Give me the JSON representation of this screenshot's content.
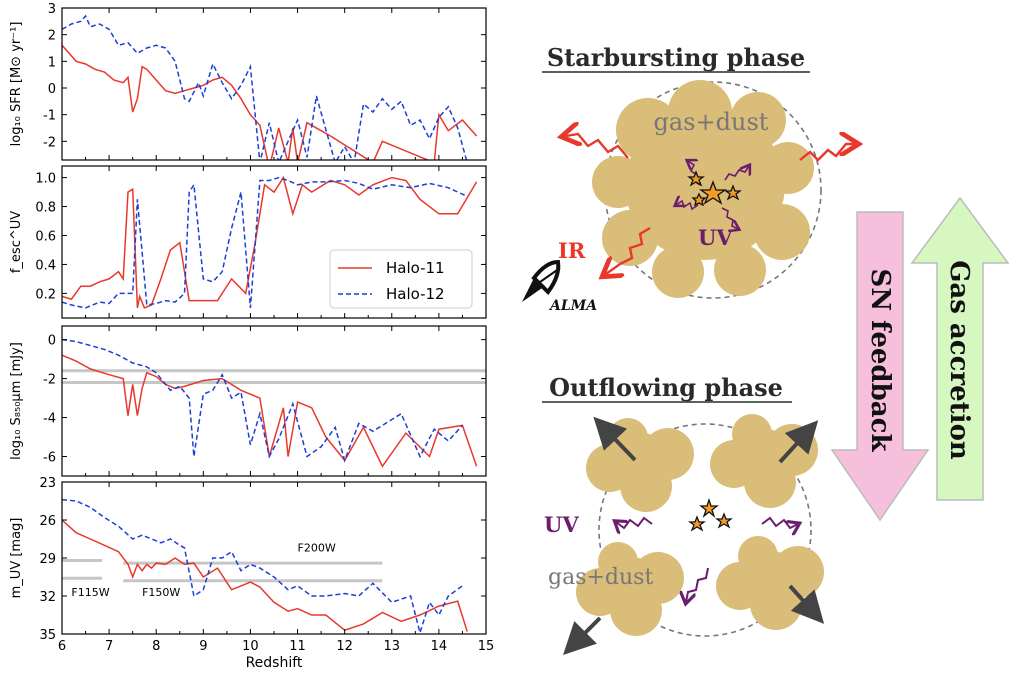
{
  "chart_data": [
    {
      "type": "line",
      "ylabel": "log₁₀ SFR [M⊙ yr⁻¹]",
      "xlabel": "",
      "xlim": [
        6,
        15
      ],
      "ylim": [
        -2.7,
        3
      ],
      "yticks": [
        -2,
        -1,
        0,
        1,
        2,
        3
      ],
      "xticks": [
        6,
        7,
        8,
        9,
        10,
        11,
        12,
        13,
        14,
        15
      ],
      "grid": false,
      "series": [
        {
          "name": "Halo-11",
          "color": "#e8382c",
          "style": "solid",
          "x": [
            6.0,
            6.15,
            6.3,
            6.5,
            6.7,
            6.9,
            7.1,
            7.3,
            7.4,
            7.5,
            7.6,
            7.7,
            7.8,
            8.0,
            8.2,
            8.4,
            8.6,
            8.8,
            9.0,
            9.2,
            9.4,
            9.6,
            9.8,
            10.0,
            10.2,
            10.4,
            10.6,
            10.8,
            10.9,
            11.0,
            11.2,
            11.5,
            11.7,
            12.6,
            12.8,
            13.9,
            14.0,
            14.2,
            14.5,
            14.8
          ],
          "y": [
            1.6,
            1.3,
            1.0,
            0.9,
            0.7,
            0.6,
            0.3,
            0.2,
            0.4,
            -0.9,
            -0.4,
            0.8,
            0.7,
            0.3,
            -0.1,
            -0.2,
            -0.1,
            0.0,
            0.1,
            0.3,
            0.4,
            0.1,
            -0.4,
            -1.0,
            -1.4,
            -3.0,
            -1.5,
            -2.8,
            -1.5,
            -2.8,
            -1.3,
            -1.6,
            -1.8,
            -2.8,
            -2.0,
            -2.8,
            -1.0,
            -1.6,
            -1.2,
            -1.8
          ]
        },
        {
          "name": "Halo-12",
          "color": "#1a3fd6",
          "style": "dashed",
          "x": [
            6.0,
            6.2,
            6.4,
            6.5,
            6.6,
            6.8,
            7.0,
            7.2,
            7.4,
            7.6,
            7.8,
            8.0,
            8.2,
            8.4,
            8.6,
            8.7,
            8.9,
            9.0,
            9.2,
            9.4,
            9.6,
            9.8,
            10.0,
            10.2,
            10.4,
            10.6,
            10.8,
            11.0,
            11.2,
            11.4,
            11.8,
            12.0,
            12.2,
            12.4,
            12.6,
            12.8,
            13.0,
            13.2,
            13.4,
            13.6,
            13.8,
            14.0,
            14.2,
            14.4,
            14.6
          ],
          "y": [
            2.2,
            2.4,
            2.5,
            2.7,
            2.3,
            2.4,
            2.2,
            1.6,
            1.7,
            1.3,
            1.5,
            1.6,
            1.5,
            1.0,
            -0.4,
            -0.5,
            0.2,
            -0.3,
            0.9,
            0.2,
            -0.4,
            0.1,
            0.8,
            -2.8,
            -1.3,
            -2.8,
            -2.0,
            -1.2,
            -2.6,
            -0.3,
            -2.8,
            -2.2,
            -2.8,
            -0.6,
            -0.9,
            -0.4,
            -0.8,
            -0.5,
            -1.4,
            -1.2,
            -1.9,
            -1.1,
            -0.7,
            -1.5,
            -2.8
          ]
        }
      ]
    },
    {
      "type": "line",
      "ylabel": "f_esc^UV",
      "xlabel": "",
      "xlim": [
        6,
        15
      ],
      "ylim": [
        0.03,
        1.08
      ],
      "yticks": [
        0.2,
        0.4,
        0.6,
        0.8,
        1.0
      ],
      "legend": {
        "position": "lower right",
        "entries": [
          "Halo-11",
          "Halo-12"
        ]
      },
      "series": [
        {
          "name": "Halo-11",
          "color": "#e8382c",
          "style": "solid",
          "x": [
            6.0,
            6.2,
            6.4,
            6.6,
            6.8,
            7.0,
            7.2,
            7.3,
            7.4,
            7.5,
            7.6,
            7.65,
            7.75,
            7.9,
            8.1,
            8.3,
            8.5,
            8.7,
            9.0,
            9.3,
            9.6,
            9.9,
            10.1,
            10.3,
            10.5,
            10.7,
            10.9,
            11.1,
            11.3,
            11.7,
            12.0,
            12.3,
            12.6,
            13.0,
            13.3,
            13.6,
            14.0,
            14.4,
            14.8
          ],
          "y": [
            0.18,
            0.16,
            0.25,
            0.25,
            0.28,
            0.3,
            0.35,
            0.3,
            0.9,
            0.92,
            0.1,
            0.18,
            0.1,
            0.12,
            0.3,
            0.5,
            0.55,
            0.15,
            0.15,
            0.15,
            0.3,
            0.2,
            0.55,
            0.95,
            0.9,
            1.0,
            0.75,
            0.95,
            0.9,
            0.98,
            0.95,
            0.88,
            0.95,
            1.0,
            0.98,
            0.85,
            0.75,
            0.75,
            0.97
          ]
        },
        {
          "name": "Halo-12",
          "color": "#1a3fd6",
          "style": "dashed",
          "x": [
            6.0,
            6.2,
            6.5,
            6.8,
            7.0,
            7.2,
            7.4,
            7.5,
            7.6,
            7.8,
            8.0,
            8.2,
            8.4,
            8.6,
            8.7,
            8.8,
            9.0,
            9.2,
            9.4,
            9.6,
            9.8,
            10.0,
            10.2,
            10.4,
            10.6,
            10.8,
            11.0,
            11.3,
            11.6,
            12.0,
            12.3,
            12.6,
            13.0,
            13.4,
            13.8,
            14.2,
            14.6
          ],
          "y": [
            0.14,
            0.12,
            0.1,
            0.14,
            0.13,
            0.2,
            0.2,
            0.2,
            0.85,
            0.12,
            0.13,
            0.15,
            0.14,
            0.2,
            0.9,
            0.95,
            0.3,
            0.28,
            0.35,
            0.65,
            0.9,
            0.1,
            0.98,
            0.98,
            1.0,
            0.98,
            0.95,
            0.97,
            0.97,
            0.98,
            0.96,
            0.92,
            0.95,
            0.93,
            0.96,
            0.93,
            0.87
          ]
        }
      ]
    },
    {
      "type": "line",
      "ylabel": "log₁₀ S₈₅₀µm [mJy]",
      "xlabel": "",
      "xlim": [
        6,
        15
      ],
      "ylim": [
        -7,
        0.7
      ],
      "yticks": [
        -6,
        -4,
        -2,
        0
      ],
      "reference_lines": [
        -1.6,
        -2.2
      ],
      "series": [
        {
          "name": "Halo-11",
          "color": "#e8382c",
          "style": "solid",
          "x": [
            6.0,
            6.3,
            6.6,
            7.0,
            7.3,
            7.4,
            7.5,
            7.6,
            7.7,
            7.8,
            8.0,
            8.2,
            8.4,
            8.6,
            9.0,
            9.4,
            9.8,
            10.2,
            10.4,
            10.7,
            10.8,
            11.0,
            11.3,
            11.6,
            12.0,
            12.4,
            12.8,
            13.3,
            13.8,
            14.0,
            14.5,
            14.8
          ],
          "y": [
            -0.8,
            -1.1,
            -1.5,
            -1.8,
            -2.0,
            -3.9,
            -2.3,
            -3.9,
            -2.5,
            -1.7,
            -1.9,
            -2.3,
            -2.5,
            -2.4,
            -2.1,
            -2.0,
            -2.6,
            -3.0,
            -6.0,
            -3.5,
            -6.0,
            -3.2,
            -3.5,
            -5.0,
            -6.2,
            -4.5,
            -6.5,
            -4.8,
            -6.0,
            -4.6,
            -4.4,
            -6.5
          ]
        },
        {
          "name": "Halo-12",
          "color": "#1a3fd6",
          "style": "dashed",
          "x": [
            6.0,
            6.3,
            6.6,
            6.9,
            7.2,
            7.5,
            7.8,
            8.0,
            8.3,
            8.5,
            8.7,
            8.8,
            9.0,
            9.2,
            9.4,
            9.6,
            9.8,
            10.0,
            10.2,
            10.4,
            10.6,
            10.9,
            11.2,
            11.5,
            11.8,
            12.0,
            12.3,
            12.6,
            12.8,
            13.2,
            13.6,
            13.9,
            14.2,
            14.5
          ],
          "y": [
            0.0,
            -0.1,
            -0.3,
            -0.5,
            -0.8,
            -1.2,
            -1.4,
            -1.7,
            -2.6,
            -2.4,
            -3.0,
            -6.0,
            -2.8,
            -2.6,
            -1.8,
            -3.0,
            -2.7,
            -5.4,
            -3.8,
            -6.0,
            -5.1,
            -3.3,
            -6.0,
            -5.5,
            -4.5,
            -6.2,
            -4.3,
            -4.7,
            -4.4,
            -3.8,
            -6.0,
            -4.6,
            -5.2,
            -4.4
          ]
        }
      ]
    },
    {
      "type": "line",
      "ylabel": "m_UV [mag]",
      "xlabel": "Redshift",
      "xlim": [
        6,
        15
      ],
      "ylim": [
        35,
        23
      ],
      "yticks": [
        23,
        26,
        29,
        32,
        35
      ],
      "xticks": [
        6,
        7,
        8,
        9,
        10,
        11,
        12,
        13,
        14,
        15
      ],
      "filter_limits": [
        {
          "label": "F115W",
          "value": 29.2,
          "x": [
            6.0,
            6.85
          ]
        },
        {
          "label": "F115W",
          "value": 30.6,
          "x": [
            6.0,
            6.85
          ]
        },
        {
          "label": "F150W",
          "value": 30.8,
          "x": [
            7.3,
            12.8
          ]
        },
        {
          "label": "F200W",
          "value": 29.4,
          "x": [
            7.3,
            12.8
          ]
        }
      ],
      "series": [
        {
          "name": "Halo-11",
          "color": "#e8382c",
          "style": "solid",
          "x": [
            6.0,
            6.3,
            6.6,
            6.9,
            7.2,
            7.4,
            7.5,
            7.6,
            7.7,
            7.8,
            7.9,
            8.0,
            8.2,
            8.4,
            8.6,
            8.8,
            9.0,
            9.3,
            9.6,
            9.8,
            10.0,
            10.2,
            10.5,
            10.8,
            11.0,
            11.3,
            11.6,
            12.0,
            12.4,
            12.8,
            13.2,
            13.6,
            14.0,
            14.4,
            14.6
          ],
          "y": [
            26.0,
            27.0,
            27.5,
            28.0,
            28.5,
            29.5,
            30.5,
            29.5,
            30.0,
            29.5,
            29.8,
            29.4,
            29.5,
            29.0,
            29.5,
            29.4,
            30.5,
            29.8,
            31.5,
            31.2,
            30.9,
            31.3,
            32.5,
            33.2,
            33.0,
            33.5,
            33.5,
            34.7,
            34.2,
            33.3,
            34.0,
            33.5,
            32.8,
            32.4,
            34.8
          ]
        },
        {
          "name": "Halo-12",
          "color": "#1a3fd6",
          "style": "dashed",
          "x": [
            6.0,
            6.3,
            6.6,
            6.9,
            7.2,
            7.5,
            7.7,
            7.9,
            8.1,
            8.3,
            8.5,
            8.6,
            8.8,
            9.0,
            9.2,
            9.4,
            9.6,
            9.8,
            10.0,
            10.2,
            10.5,
            10.8,
            11.0,
            11.3,
            11.6,
            12.0,
            12.3,
            12.6,
            13.0,
            13.4,
            13.6,
            13.8,
            14.0,
            14.2,
            14.5
          ],
          "y": [
            24.4,
            24.5,
            25.0,
            25.8,
            26.5,
            27.5,
            27.2,
            27.5,
            27.8,
            27.5,
            28.0,
            28.2,
            32.0,
            31.5,
            29.0,
            29.0,
            28.5,
            30.0,
            29.5,
            29.8,
            30.5,
            31.5,
            31.2,
            32.0,
            32.0,
            31.8,
            32.0,
            31.0,
            32.5,
            32.0,
            34.9,
            32.5,
            33.5,
            32.0,
            31.2
          ]
        }
      ]
    }
  ],
  "schematic": {
    "starburst_title": "Starbursting phase",
    "outflow_title": "Outflowing phase",
    "gas_dust_label": "gas+dust",
    "uv_label": "UV",
    "ir_label": "IR",
    "alma_label": "ALMA",
    "sn_feedback_label": "SN feedback",
    "gas_accretion_label": "Gas accretion",
    "colors": {
      "cloud": "#d9bd78",
      "ir": "#e8382c",
      "uv": "#6b1d6e",
      "star": "#f29b26",
      "sn_arrow": "#f6c0dc",
      "accretion_arrow": "#d6f7c0"
    }
  }
}
